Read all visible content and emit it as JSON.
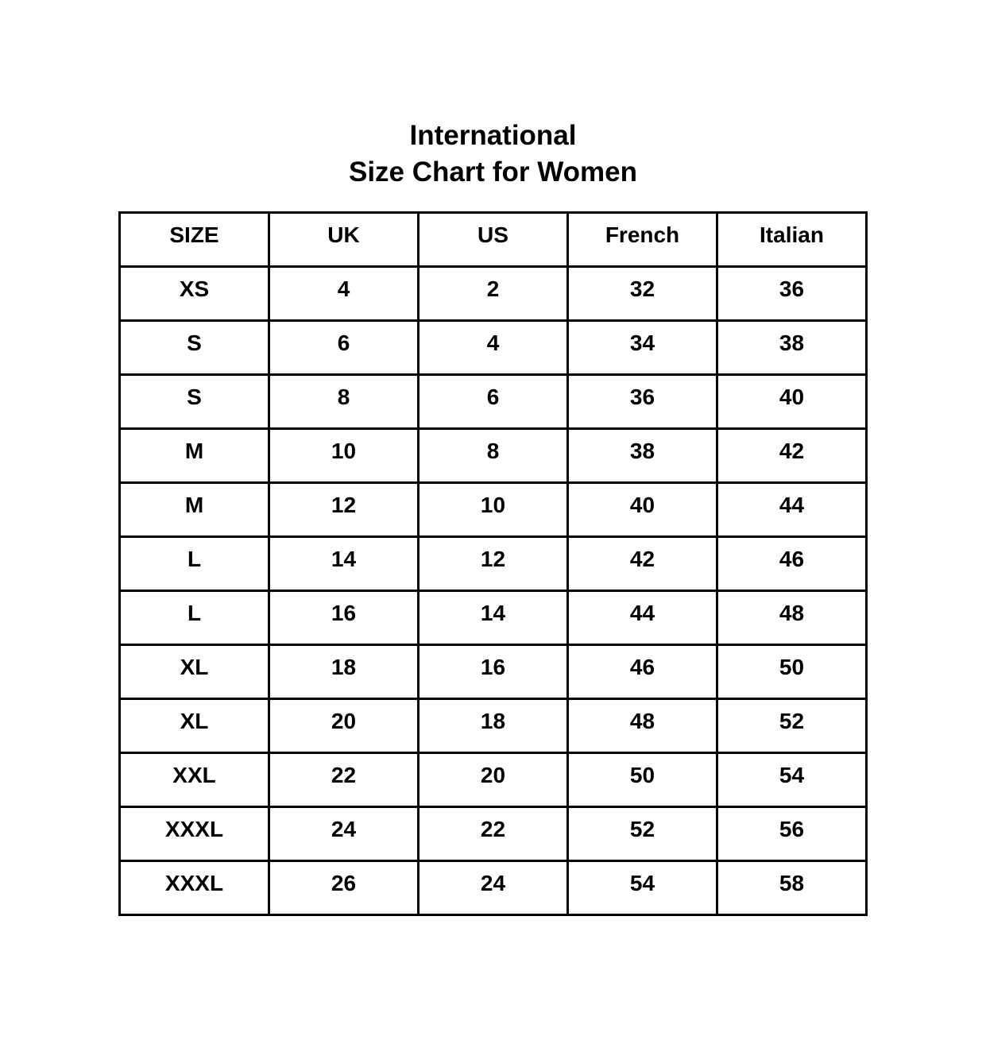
{
  "title": {
    "line1": "International",
    "line2": "Size Chart for Women"
  },
  "colors": {
    "background": "#ffffff",
    "text": "#000000",
    "border": "#000000"
  },
  "chart_data": {
    "type": "table",
    "title": "International Size Chart for Women",
    "columns": [
      "SIZE",
      "UK",
      "US",
      "French",
      "Italian"
    ],
    "rows": [
      [
        "XS",
        "4",
        "2",
        "32",
        "36"
      ],
      [
        "S",
        "6",
        "4",
        "34",
        "38"
      ],
      [
        "S",
        "8",
        "6",
        "36",
        "40"
      ],
      [
        "M",
        "10",
        "8",
        "38",
        "42"
      ],
      [
        "M",
        "12",
        "10",
        "40",
        "44"
      ],
      [
        "L",
        "14",
        "12",
        "42",
        "46"
      ],
      [
        "L",
        "16",
        "14",
        "44",
        "48"
      ],
      [
        "XL",
        "18",
        "16",
        "46",
        "50"
      ],
      [
        "XL",
        "20",
        "18",
        "48",
        "52"
      ],
      [
        "XXL",
        "22",
        "20",
        "50",
        "54"
      ],
      [
        "XXXL",
        "24",
        "22",
        "52",
        "56"
      ],
      [
        "XXXL",
        "26",
        "24",
        "54",
        "58"
      ]
    ]
  }
}
